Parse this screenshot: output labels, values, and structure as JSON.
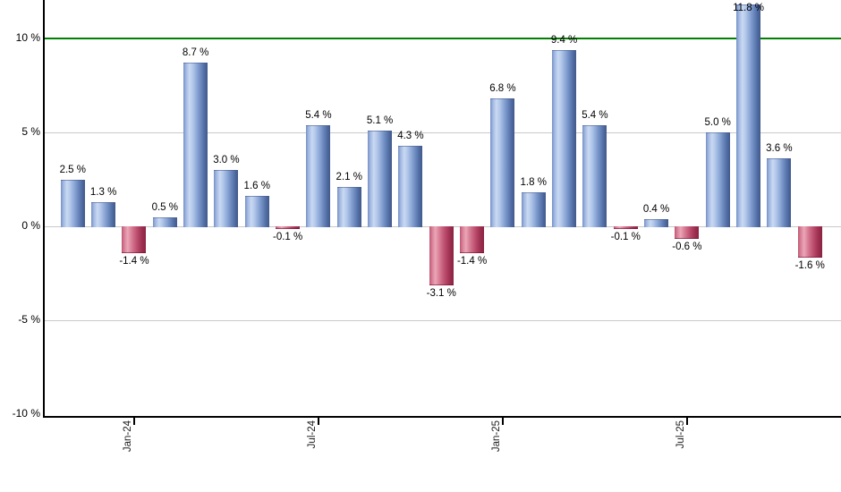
{
  "chart_data": {
    "type": "bar",
    "title": "",
    "xlabel": "",
    "ylabel": "",
    "unit": "%",
    "values": [
      2.5,
      1.3,
      -1.4,
      0.5,
      8.7,
      3.0,
      1.6,
      -0.1,
      5.4,
      2.1,
      5.1,
      4.3,
      -3.1,
      -1.4,
      6.8,
      1.8,
      9.4,
      5.4,
      -0.1,
      0.4,
      -0.6,
      5.0,
      11.8,
      3.6,
      -1.6
    ],
    "bar_count": 25,
    "x_tick_labels": [
      {
        "index": 2,
        "label": "Jan-24"
      },
      {
        "index": 8,
        "label": "Jul-24"
      },
      {
        "index": 14,
        "label": "Jan-25"
      },
      {
        "index": 20,
        "label": "Jul-25"
      }
    ],
    "y_tick_labels": [
      {
        "value": 10,
        "label": "10 %"
      },
      {
        "value": 5,
        "label": "5 %"
      },
      {
        "value": 0,
        "label": "0 %"
      },
      {
        "value": -5,
        "label": "-5 %"
      },
      {
        "value": -10,
        "label": "-10 %"
      }
    ],
    "gridlines_at": [
      5,
      0,
      -5
    ],
    "reference_line": {
      "value": 10,
      "color": "#008000"
    },
    "ylim": [
      -10.15,
      12.05
    ],
    "legend": "none",
    "grid": "on",
    "label_suffix": " %",
    "colors": {
      "positive_bar_edge": "#42598b",
      "positive_bar_highlight": "#c9d9f2",
      "positive_bar_base": "#7490c4",
      "negative_bar_edge": "#8b2242",
      "negative_bar_highlight": "#eba6b6",
      "negative_bar_base": "#c05672",
      "gridline": "#c9c9c9",
      "axis": "#000000",
      "reference_line": "#008000",
      "label_text": "#000000"
    }
  }
}
